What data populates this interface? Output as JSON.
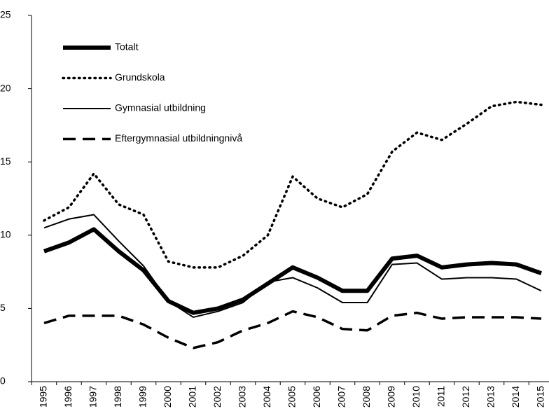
{
  "chart_data": {
    "type": "line",
    "categories": [
      "1995",
      "1996",
      "1997",
      "1998",
      "1999",
      "2000",
      "2001",
      "2002",
      "2003",
      "2004",
      "2005",
      "2006",
      "2007",
      "2008",
      "2009",
      "2010",
      "2011",
      "2012",
      "2013",
      "2014",
      "2015"
    ],
    "series": [
      {
        "name": "Totalt",
        "color": "#000000",
        "width": 6,
        "dash": "none",
        "values": [
          8.9,
          9.5,
          10.4,
          8.9,
          7.6,
          5.5,
          4.7,
          5.0,
          5.6,
          6.7,
          7.8,
          7.1,
          6.2,
          6.2,
          8.4,
          8.6,
          7.8,
          8.0,
          8.1,
          8.0,
          7.4
        ]
      },
      {
        "name": "Grundskola",
        "color": "#000000",
        "width": 3.5,
        "dash": "dot",
        "values": [
          11.0,
          11.9,
          14.2,
          12.1,
          11.4,
          8.2,
          7.8,
          7.8,
          8.6,
          10.0,
          14.0,
          12.5,
          11.9,
          12.8,
          15.7,
          17.0,
          16.5,
          17.6,
          18.8,
          19.1,
          18.9
        ]
      },
      {
        "name": "Gymnasial utbildning",
        "color": "#000000",
        "width": 2,
        "dash": "none",
        "values": [
          10.5,
          11.1,
          11.4,
          9.6,
          7.9,
          5.5,
          4.4,
          4.8,
          5.4,
          6.8,
          7.1,
          6.4,
          5.4,
          5.4,
          8.0,
          8.1,
          7.0,
          7.1,
          7.1,
          7.0,
          6.2
        ]
      },
      {
        "name": "Eftergymnasial utbildningnivå",
        "color": "#000000",
        "width": 3.5,
        "dash": "dash",
        "values": [
          4.0,
          4.5,
          4.5,
          4.5,
          3.9,
          3.0,
          2.3,
          2.7,
          3.5,
          4.0,
          4.8,
          4.4,
          3.6,
          3.5,
          4.5,
          4.7,
          4.3,
          4.4,
          4.4,
          4.4,
          4.3
        ]
      }
    ],
    "ylim": [
      0,
      25
    ],
    "yticks": [
      0,
      5,
      10,
      15,
      20,
      25
    ],
    "grid": false,
    "legend": "upper left"
  }
}
